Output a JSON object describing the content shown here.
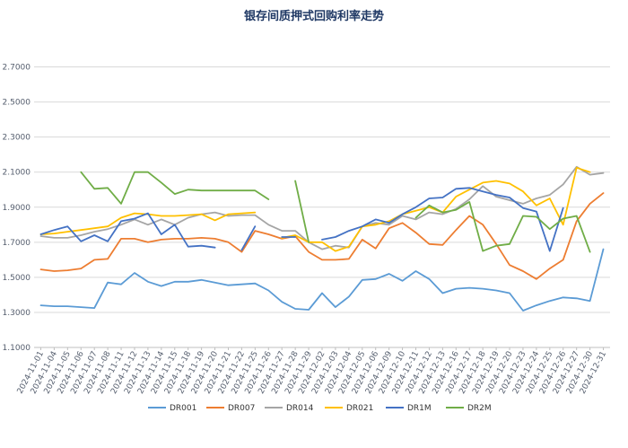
{
  "chart_data": {
    "type": "line",
    "title": "银存间质押式回购利率走势",
    "xlabel": "",
    "ylabel": "",
    "ylim": [
      1.1,
      2.8
    ],
    "yticks": [
      "1.1000",
      "1.3000",
      "1.5000",
      "1.7000",
      "1.9000",
      "2.1000",
      "2.3000",
      "2.5000",
      "2.7000"
    ],
    "grid": true,
    "legend_position": "bottom",
    "x": [
      "2024-11-01",
      "2024-11-04",
      "2024-11-05",
      "2024-11-06",
      "2024-11-07",
      "2024-11-08",
      "2024-11-11",
      "2024-11-12",
      "2024-11-13",
      "2024-11-14",
      "2024-11-15",
      "2024-11-18",
      "2024-11-19",
      "2024-11-20",
      "2024-11-21",
      "2024-11-22",
      "2024-11-25",
      "2024-11-26",
      "2024-11-27",
      "2024-11-28",
      "2024-11-29",
      "2024-12-02",
      "2024-12-03",
      "2024-12-04",
      "2024-12-05",
      "2024-12-06",
      "2024-12-09",
      "2024-12-10",
      "2024-12-11",
      "2024-12-12",
      "2024-12-13",
      "2024-12-16",
      "2024-12-17",
      "2024-12-18",
      "2024-12-19",
      "2024-12-20",
      "2024-12-23",
      "2024-12-24",
      "2024-12-25",
      "2024-12-26",
      "2024-12-27",
      "2024-12-30",
      "2024-12-31"
    ],
    "series": [
      {
        "name": "DR001",
        "color": "#5b9bd5",
        "values": [
          1.34,
          1.335,
          1.335,
          1.33,
          1.325,
          1.47,
          1.46,
          1.525,
          1.475,
          1.45,
          1.475,
          1.475,
          1.485,
          1.47,
          1.455,
          1.46,
          1.465,
          1.425,
          1.36,
          1.32,
          1.315,
          1.41,
          1.33,
          1.39,
          1.485,
          1.49,
          1.52,
          1.48,
          1.535,
          1.49,
          1.41,
          1.435,
          1.44,
          1.435,
          1.425,
          1.41,
          1.31,
          1.34,
          1.365,
          1.385,
          1.38,
          1.365,
          1.66
        ]
      },
      {
        "name": "DR007",
        "color": "#ed7d31",
        "values": [
          1.545,
          1.535,
          1.54,
          1.55,
          1.6,
          1.605,
          1.72,
          1.72,
          1.7,
          1.715,
          1.72,
          1.72,
          1.725,
          1.72,
          1.7,
          1.645,
          1.765,
          1.745,
          1.72,
          1.735,
          1.645,
          1.6,
          1.6,
          1.605,
          1.715,
          1.665,
          1.78,
          1.81,
          1.755,
          1.69,
          1.685,
          1.77,
          1.85,
          1.8,
          1.69,
          1.57,
          1.535,
          1.49,
          1.55,
          1.6,
          1.82,
          1.92,
          1.98
        ]
      },
      {
        "name": "DR014",
        "color": "#a5a5a5",
        "values": [
          1.735,
          1.725,
          1.725,
          1.74,
          1.76,
          1.775,
          1.8,
          1.83,
          1.8,
          1.83,
          1.8,
          1.84,
          1.86,
          1.87,
          1.85,
          1.855,
          1.855,
          1.8,
          1.765,
          1.765,
          1.7,
          1.66,
          1.68,
          1.67,
          1.79,
          1.81,
          1.8,
          1.85,
          1.83,
          1.87,
          1.86,
          1.89,
          1.945,
          2.02,
          1.96,
          1.94,
          1.92,
          1.95,
          1.97,
          2.03,
          2.13,
          2.085,
          2.095
        ]
      },
      {
        "name": "DR021",
        "color": "#ffc000",
        "values": [
          1.745,
          1.75,
          1.76,
          1.77,
          1.78,
          1.79,
          1.84,
          1.865,
          1.86,
          1.85,
          1.85,
          1.855,
          1.86,
          1.825,
          1.86,
          1.865,
          1.87,
          null,
          1.725,
          1.74,
          1.7,
          1.7,
          1.65,
          1.675,
          1.79,
          1.8,
          1.82,
          1.86,
          1.88,
          1.9,
          1.87,
          1.96,
          2.0,
          2.04,
          2.05,
          2.035,
          1.99,
          1.91,
          1.95,
          1.8,
          2.125,
          2.1,
          null
        ]
      },
      {
        "name": "DR1M",
        "color": "#4472c4",
        "values": [
          1.745,
          1.77,
          1.79,
          1.705,
          1.74,
          1.705,
          1.82,
          1.835,
          1.865,
          1.745,
          1.8,
          1.675,
          1.68,
          1.67,
          null,
          1.655,
          1.79,
          null,
          1.73,
          1.73,
          null,
          1.715,
          1.73,
          1.765,
          1.79,
          1.83,
          1.81,
          1.86,
          1.9,
          1.95,
          1.955,
          2.005,
          2.01,
          1.99,
          1.97,
          1.955,
          1.895,
          1.875,
          1.65,
          1.895,
          null,
          null,
          null
        ]
      },
      {
        "name": "DR2M",
        "color": "#70ad47",
        "values": [
          null,
          null,
          null,
          2.1,
          2.005,
          2.01,
          1.92,
          2.1,
          2.1,
          2.04,
          1.975,
          2.0,
          1.995,
          1.995,
          1.995,
          1.995,
          1.995,
          1.945,
          null,
          2.05,
          1.7,
          null,
          null,
          null,
          null,
          null,
          null,
          null,
          1.84,
          1.91,
          1.87,
          1.885,
          1.93,
          1.65,
          1.68,
          1.69,
          1.85,
          1.845,
          1.775,
          1.835,
          1.85,
          1.645,
          null
        ]
      }
    ]
  }
}
